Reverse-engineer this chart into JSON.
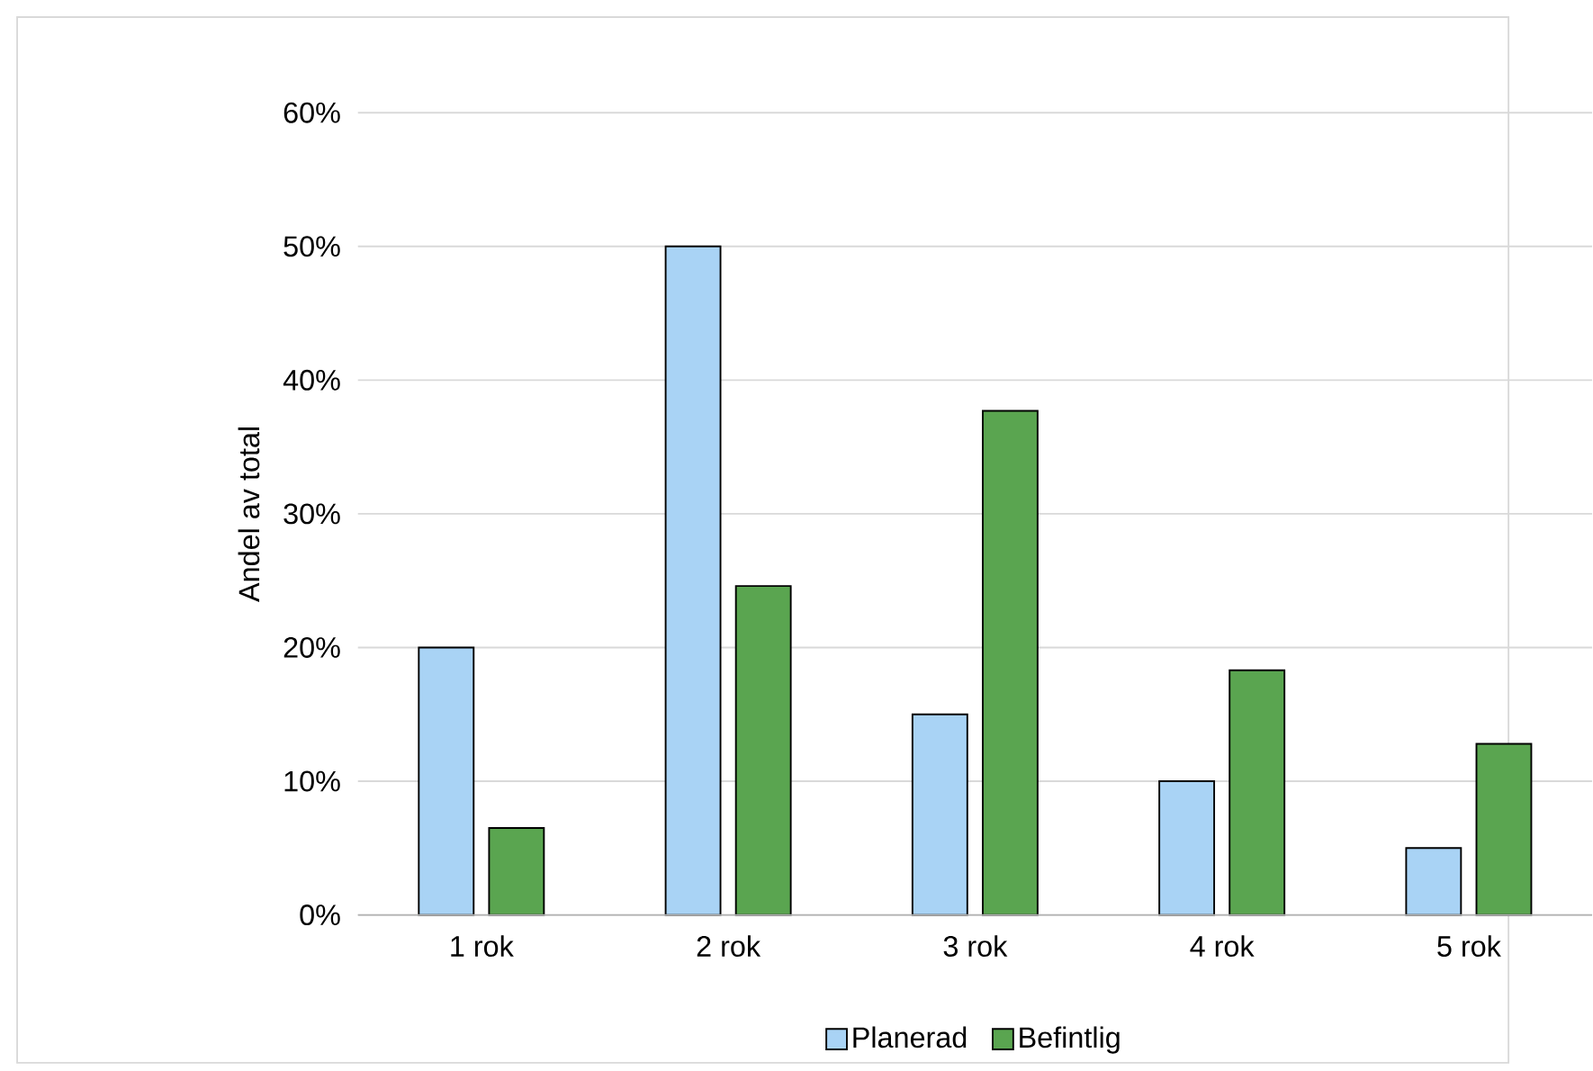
{
  "chart_data": {
    "type": "bar",
    "ylabel": "Andel av total",
    "categories": [
      "1 rok",
      "2 rok",
      "3 rok",
      "4 rok",
      "5 rok"
    ],
    "series": [
      {
        "name": "Planerad",
        "color": "#a9d3f5",
        "values": [
          20,
          50,
          15,
          10,
          5
        ]
      },
      {
        "name": "Befintlig",
        "color": "#5aa550",
        "values": [
          6.5,
          24.6,
          37.7,
          18.3,
          12.8
        ]
      }
    ],
    "ylim": [
      0,
      60
    ],
    "yticks": [
      {
        "value": 0,
        "label": "0%"
      },
      {
        "value": 10,
        "label": "10%"
      },
      {
        "value": 20,
        "label": "20%"
      },
      {
        "value": 30,
        "label": "30%"
      },
      {
        "value": 40,
        "label": "40%"
      },
      {
        "value": 50,
        "label": "50%"
      },
      {
        "value": 60,
        "label": "60%"
      }
    ],
    "grid": "y",
    "legend": "bottom"
  }
}
